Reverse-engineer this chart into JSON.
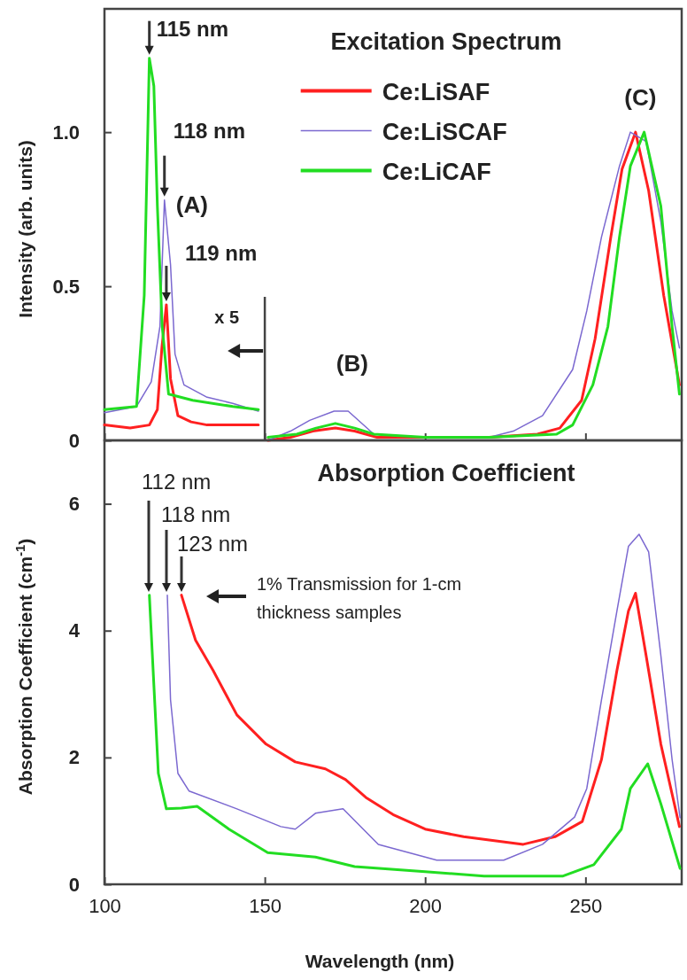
{
  "chart_data": [
    {
      "type": "line",
      "title": "Excitation Spectrum",
      "ylabel": "Intensity (arb. units)",
      "xlim": [
        100,
        280
      ],
      "xticks": [
        {
          "value": 100,
          "label": null
        },
        {
          "value": 150,
          "label": null
        },
        {
          "value": 200,
          "label": null
        },
        {
          "value": 250,
          "label": null
        }
      ],
      "ylim": [
        0,
        1.4
      ],
      "yticks": [
        0,
        0.5,
        {
          "value": 1,
          "label": "1.0"
        }
      ],
      "tick_labels": "y",
      "legend": "top right",
      "grid": false,
      "ref_lines": [
        {
          "axis": "x",
          "value": 150,
          "label": "x 5"
        }
      ],
      "annotations": [
        {
          "text": "115 nm",
          "x": 114,
          "y": 1.24
        },
        {
          "text": "118 nm",
          "x": 118.7,
          "y": 0.78
        },
        {
          "text": "119 nm",
          "x": 119.3,
          "y": 0.44
        },
        {
          "text": "(A)",
          "x": 118.7,
          "y": 0.78
        },
        {
          "text": "(B)",
          "x": 172,
          "y": 0.095
        },
        {
          "text": "(C)",
          "x": 266,
          "y": 1.0
        }
      ],
      "series": [
        {
          "name": "Ce:LiSAF",
          "color": "#ff2020",
          "x": [
            100,
            108,
            114,
            116.5,
            117.9,
            119.3,
            120.6,
            122.9,
            127,
            132,
            140,
            148,
            149,
            151,
            158,
            165,
            172,
            178,
            185,
            200,
            220,
            235,
            242,
            248.8,
            253,
            257.9,
            261.4,
            265.6,
            269.7,
            274.4,
            279.3
          ],
          "values": [
            0.05,
            0.04,
            0.05,
            0.1,
            0.3,
            0.44,
            0.2,
            0.08,
            0.06,
            0.05,
            0.05,
            0.05,
            null,
            0.0,
            0.01,
            0.03,
            0.04,
            0.03,
            0.01,
            0.01,
            0.01,
            0.02,
            0.04,
            0.13,
            0.33,
            0.66,
            0.88,
            1.0,
            0.81,
            0.47,
            0.18
          ]
        },
        {
          "name": "Ce:LiSCAF",
          "color": "#7b68d0",
          "x": [
            100,
            110,
            114.6,
            117.3,
            118.7,
            120.6,
            122,
            124.8,
            132,
            140,
            148,
            149,
            151,
            158,
            164,
            171.6,
            176,
            184,
            200,
            220,
            227.5,
            236.6,
            246,
            250.4,
            255,
            260.6,
            264,
            268.9,
            273.5,
            277,
            279.3
          ],
          "values": [
            0.09,
            0.11,
            0.19,
            0.37,
            0.78,
            0.57,
            0.28,
            0.18,
            0.14,
            0.12,
            0.095,
            null,
            0.0,
            0.03,
            0.065,
            0.095,
            0.095,
            0.02,
            0.01,
            0.01,
            0.03,
            0.08,
            0.23,
            0.42,
            0.66,
            0.89,
            1.0,
            0.97,
            0.71,
            0.42,
            0.3
          ]
        },
        {
          "name": "Ce:LiCAF",
          "color": "#22dd22",
          "x": [
            100,
            110,
            112.4,
            114,
            115.4,
            116.5,
            118,
            120,
            127.5,
            140,
            148,
            149,
            151,
            160,
            166,
            172,
            178,
            184,
            200,
            220,
            241,
            246,
            252.3,
            257,
            260.6,
            264,
            268.3,
            273.5,
            277,
            279.3
          ],
          "values": [
            0.1,
            0.11,
            0.47,
            1.24,
            1.15,
            0.76,
            0.37,
            0.15,
            0.13,
            0.11,
            0.1,
            null,
            0.01,
            0.02,
            0.04,
            0.055,
            0.04,
            0.02,
            0.01,
            0.01,
            0.02,
            0.05,
            0.18,
            0.37,
            0.66,
            0.89,
            1.0,
            0.76,
            0.37,
            0.15
          ]
        }
      ]
    },
    {
      "type": "line",
      "title": "Absorption Coefficient",
      "xlabel": "Wavelength (nm)",
      "ylabel": "Absorption Coefficient (cm$^{-1}$)",
      "xlim": [
        100,
        280
      ],
      "xticks": [
        100,
        150,
        200,
        250
      ],
      "ylim": [
        0,
        7
      ],
      "yticks": [
        0,
        2,
        4,
        6
      ],
      "grid": false,
      "annotations": [
        "112 nm",
        "118 nm",
        "123 nm",
        "1% Transmission for 1-cm thickness samples"
      ],
      "series": [
        {
          "color": "#ff2020",
          "x": [
            124,
            128.4,
            133.9,
            141.3,
            150.4,
            159.5,
            168.9,
            175.2,
            181.5,
            190,
            200,
            212,
            230.6,
            240.5,
            249,
            255,
            259.8,
            263.4,
            265.6,
            268.9,
            273.5,
            279.3
          ],
          "values": [
            4.56,
            3.85,
            3.37,
            2.67,
            2.21,
            1.93,
            1.82,
            1.65,
            1.37,
            1.1,
            0.87,
            0.75,
            0.63,
            0.75,
            0.99,
            1.97,
            3.37,
            4.31,
            4.59,
            3.61,
            2.21,
            0.91
          ]
        },
        {
          "color": "#7b68d0",
          "x": [
            119.6,
            120.6,
            122.9,
            126.4,
            141.3,
            155,
            159.5,
            165.8,
            174.4,
            185.4,
            203.6,
            224.5,
            236.6,
            246.6,
            250.4,
            255,
            259.8,
            263.4,
            266.7,
            269.7,
            273.5,
            277,
            279.5
          ],
          "values": [
            4.56,
            2.91,
            1.75,
            1.47,
            1.19,
            0.91,
            0.87,
            1.12,
            1.19,
            0.63,
            0.38,
            0.38,
            0.63,
            1.06,
            1.51,
            2.91,
            4.31,
            5.33,
            5.52,
            5.24,
            3.61,
            1.97,
            1.05
          ]
        },
        {
          "color": "#22dd22",
          "x": [
            114,
            115.4,
            116.8,
            119.3,
            124,
            128.9,
            138.8,
            150.9,
            165.8,
            178,
            200,
            218.4,
            243,
            252.6,
            261.2,
            264,
            269.4,
            273.5,
            279.5
          ],
          "values": [
            4.56,
            3.15,
            1.75,
            1.19,
            1.2,
            1.23,
            0.87,
            0.5,
            0.43,
            0.28,
            0.2,
            0.13,
            0.13,
            0.31,
            0.87,
            1.51,
            1.9,
            1.27,
            0.25
          ]
        }
      ]
    }
  ]
}
